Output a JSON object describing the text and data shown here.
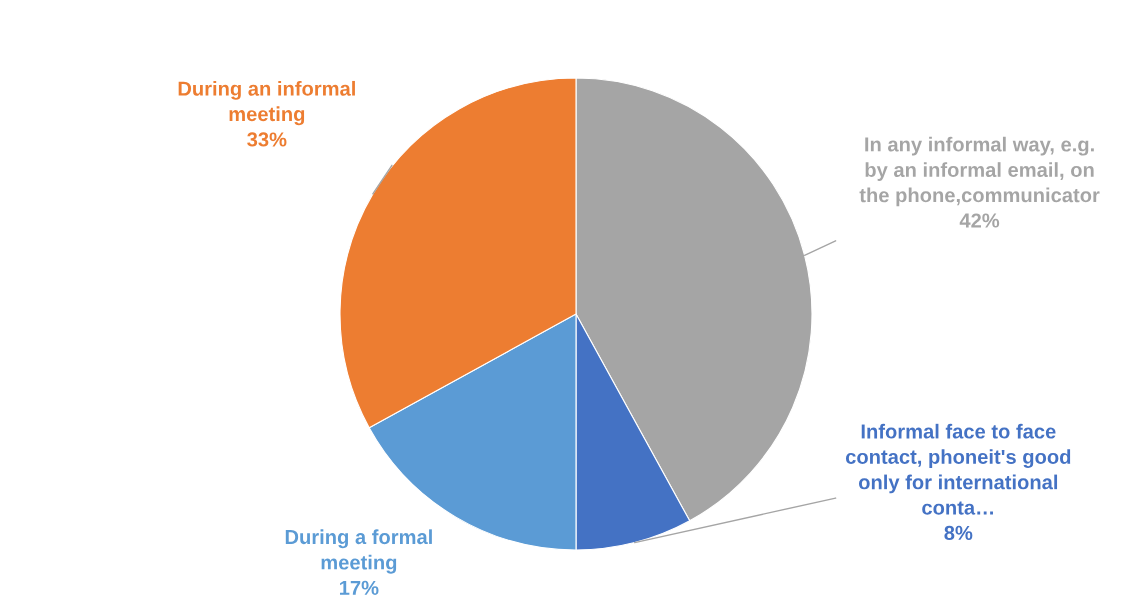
{
  "chart_data": {
    "type": "pie",
    "categories": [
      "In any informal way, e.g.\nby an informal email, on\nthe phone,communicator",
      "Informal face to face\ncontact, phoneit's good\nonly for international\nconta…",
      "During a formal\nmeeting",
      "During an informal\nmeeting"
    ],
    "values": [
      42,
      8,
      17,
      33
    ],
    "value_labels": [
      "42%",
      "8%",
      "17%",
      "33%"
    ],
    "colors": [
      "#a5a5a5",
      "#4472c4",
      "#5b9bd5",
      "#ed7d31"
    ]
  }
}
